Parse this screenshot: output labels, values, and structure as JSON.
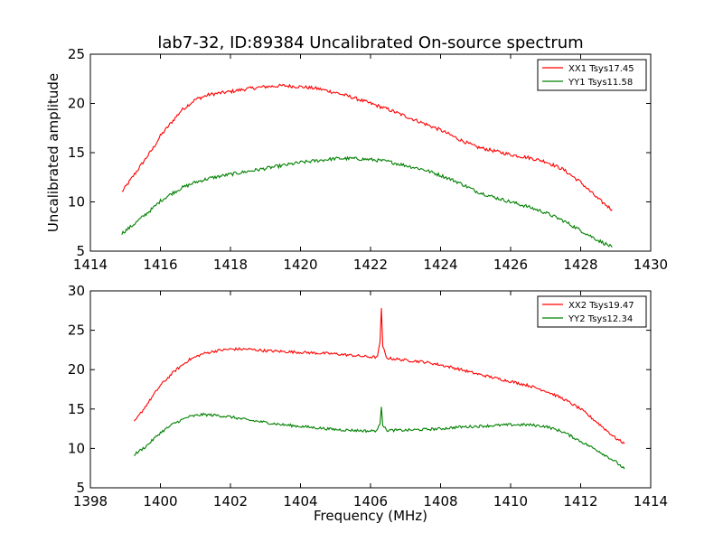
{
  "chart_data": [
    {
      "type": "line",
      "title": "lab7-32, ID:89384 Uncalibrated On-source spectrum",
      "xlabel": "",
      "ylabel": "Uncalibrated amplitude",
      "xlim": [
        1414,
        1430
      ],
      "ylim": [
        5,
        25
      ],
      "xticks": [
        1414,
        1416,
        1418,
        1420,
        1422,
        1424,
        1426,
        1428,
        1430
      ],
      "yticks": [
        5,
        10,
        15,
        20,
        25
      ],
      "grid": false,
      "legend_position": "top-right",
      "series": [
        {
          "name": "XX1 Tsys17.45",
          "color": "#ff0000",
          "x": [
            1414.9,
            1415.2,
            1415.5,
            1415.8,
            1416.0,
            1416.3,
            1416.6,
            1417.0,
            1417.4,
            1418.0,
            1418.5,
            1419.0,
            1419.5,
            1420.0,
            1420.5,
            1421.0,
            1421.5,
            1422.0,
            1422.5,
            1423.0,
            1423.5,
            1424.0,
            1424.5,
            1425.0,
            1425.5,
            1426.0,
            1426.5,
            1427.0,
            1427.5,
            1428.0,
            1428.5,
            1428.9
          ],
          "y": [
            11.0,
            12.5,
            14.0,
            15.5,
            16.7,
            18.0,
            19.3,
            20.4,
            20.9,
            21.2,
            21.5,
            21.7,
            21.8,
            21.7,
            21.5,
            21.1,
            20.6,
            20.0,
            19.4,
            18.7,
            18.0,
            17.3,
            16.4,
            15.6,
            15.2,
            14.8,
            14.5,
            14.1,
            13.3,
            12.0,
            10.3,
            9.2
          ]
        },
        {
          "name": "YY1 Tsys11.58",
          "color": "#008000",
          "x": [
            1414.9,
            1415.2,
            1415.5,
            1415.8,
            1416.0,
            1416.3,
            1416.6,
            1417.0,
            1417.4,
            1418.0,
            1418.5,
            1419.0,
            1419.5,
            1420.0,
            1420.5,
            1421.0,
            1421.5,
            1422.0,
            1422.5,
            1423.0,
            1423.5,
            1424.0,
            1424.5,
            1425.0,
            1425.5,
            1426.0,
            1426.5,
            1427.0,
            1427.5,
            1428.0,
            1428.5,
            1428.9
          ],
          "y": [
            6.8,
            7.6,
            8.5,
            9.4,
            10.1,
            10.8,
            11.4,
            12.0,
            12.4,
            12.8,
            13.1,
            13.4,
            13.7,
            14.0,
            14.2,
            14.4,
            14.4,
            14.3,
            14.1,
            13.7,
            13.3,
            12.7,
            12.0,
            11.1,
            10.5,
            10.0,
            9.5,
            8.9,
            8.1,
            7.1,
            6.1,
            5.4
          ]
        }
      ]
    },
    {
      "type": "line",
      "title": "",
      "xlabel": "Frequency (MHz)",
      "ylabel": "",
      "xlim": [
        1398,
        1414
      ],
      "ylim": [
        5,
        30
      ],
      "xticks": [
        1398,
        1400,
        1402,
        1404,
        1406,
        1408,
        1410,
        1412,
        1414
      ],
      "yticks": [
        5,
        10,
        15,
        20,
        25,
        30
      ],
      "grid": false,
      "legend_position": "top-right",
      "series": [
        {
          "name": "XX2 Tsys19.47",
          "color": "#ff0000",
          "x": [
            1399.25,
            1399.6,
            1400.0,
            1400.4,
            1400.8,
            1401.2,
            1401.6,
            1402.0,
            1402.5,
            1403.0,
            1403.5,
            1404.0,
            1404.5,
            1405.0,
            1405.5,
            1406.0,
            1406.2,
            1406.27,
            1406.31,
            1406.35,
            1406.45,
            1406.6,
            1407.0,
            1407.5,
            1408.0,
            1408.5,
            1409.0,
            1409.5,
            1410.0,
            1410.5,
            1411.0,
            1411.5,
            1412.0,
            1412.5,
            1413.0,
            1413.25
          ],
          "y": [
            13.3,
            15.5,
            18.0,
            19.8,
            21.2,
            22.0,
            22.4,
            22.6,
            22.6,
            22.4,
            22.3,
            22.2,
            22.1,
            22.0,
            21.8,
            21.6,
            21.6,
            23.5,
            27.8,
            23.0,
            21.5,
            21.4,
            21.2,
            21.0,
            20.6,
            20.1,
            19.5,
            19.0,
            18.5,
            18.0,
            17.3,
            16.3,
            15.0,
            13.2,
            11.3,
            10.6
          ]
        },
        {
          "name": "YY2 Tsys12.34",
          "color": "#008000",
          "x": [
            1399.25,
            1399.6,
            1400.0,
            1400.4,
            1400.8,
            1401.2,
            1401.6,
            1402.0,
            1402.5,
            1403.0,
            1403.5,
            1404.0,
            1404.5,
            1405.0,
            1405.5,
            1406.0,
            1406.2,
            1406.27,
            1406.31,
            1406.35,
            1406.45,
            1406.6,
            1407.0,
            1407.5,
            1408.0,
            1408.5,
            1409.0,
            1409.5,
            1410.0,
            1410.5,
            1411.0,
            1411.5,
            1412.0,
            1412.5,
            1413.0,
            1413.25
          ],
          "y": [
            9.2,
            10.3,
            12.0,
            13.2,
            14.0,
            14.3,
            14.2,
            14.0,
            13.6,
            13.3,
            13.0,
            12.8,
            12.6,
            12.4,
            12.3,
            12.2,
            12.3,
            13.2,
            15.4,
            13.0,
            12.3,
            12.3,
            12.3,
            12.4,
            12.5,
            12.7,
            12.8,
            12.9,
            13.0,
            13.0,
            12.8,
            12.1,
            10.9,
            9.7,
            8.3,
            7.4
          ]
        }
      ]
    }
  ]
}
